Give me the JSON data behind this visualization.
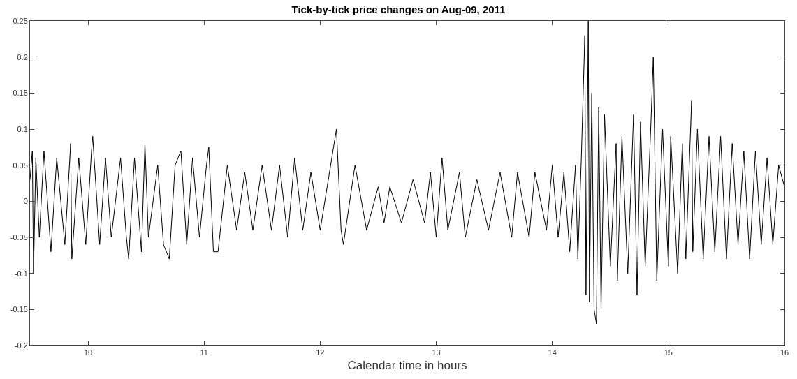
{
  "chart_data": {
    "type": "line",
    "title": "Tick-by-tick price changes on Aug-09, 2011",
    "xlabel": "Calendar time in hours",
    "xlim": [
      9.5,
      16
    ],
    "xticks": [
      10,
      11,
      12,
      13,
      14,
      15,
      16
    ],
    "ylim": [
      -0.2,
      0.25
    ],
    "yticks": [
      -0.2,
      -0.15,
      -0.1,
      -0.05,
      0,
      0.05,
      0.1,
      0.15,
      0.2,
      0.25
    ],
    "marker": "none",
    "line_style": "solid",
    "series": [
      {
        "color": "#000000",
        "x": [
          9.5,
          9.52,
          9.53,
          9.55,
          9.58,
          9.62,
          9.68,
          9.73,
          9.8,
          9.85,
          9.86,
          9.92,
          9.98,
          10.03,
          10.04,
          10.1,
          10.15,
          10.2,
          10.28,
          10.33,
          10.35,
          10.4,
          10.46,
          10.49,
          10.52,
          10.6,
          10.65,
          10.7,
          10.75,
          10.8,
          10.85,
          10.9,
          10.96,
          11.02,
          11.04,
          11.08,
          11.12,
          11.2,
          11.28,
          11.35,
          11.42,
          11.5,
          11.58,
          11.65,
          11.72,
          11.78,
          11.85,
          11.92,
          12.0,
          12.08,
          12.14,
          12.18,
          12.2,
          12.3,
          12.4,
          12.5,
          12.55,
          12.6,
          12.7,
          12.8,
          12.9,
          12.95,
          13.0,
          13.05,
          13.1,
          13.2,
          13.25,
          13.35,
          13.45,
          13.55,
          13.65,
          13.7,
          13.8,
          13.85,
          13.95,
          14.0,
          14.05,
          14.1,
          14.15,
          14.2,
          14.22,
          14.25,
          14.28,
          14.29,
          14.3,
          14.31,
          14.32,
          14.34,
          14.36,
          14.38,
          14.4,
          14.42,
          14.45,
          14.5,
          14.55,
          14.56,
          14.6,
          14.65,
          14.7,
          14.73,
          14.76,
          14.8,
          14.85,
          14.87,
          14.9,
          14.95,
          15.0,
          15.02,
          15.08,
          15.12,
          15.15,
          15.2,
          15.21,
          15.25,
          15.3,
          15.35,
          15.4,
          15.45,
          15.5,
          15.55,
          15.6,
          15.65,
          15.7,
          15.75,
          15.8,
          15.85,
          15.9,
          15.95,
          16.0
        ],
        "values": [
          0.03,
          0.07,
          -0.1,
          0.06,
          -0.05,
          0.07,
          -0.07,
          0.06,
          -0.06,
          0.08,
          -0.08,
          0.06,
          -0.06,
          0.07,
          0.09,
          -0.06,
          0.06,
          -0.05,
          0.06,
          -0.05,
          -0.08,
          0.06,
          -0.07,
          0.08,
          -0.05,
          0.05,
          -0.06,
          -0.08,
          0.05,
          0.07,
          -0.06,
          0.06,
          -0.05,
          0.05,
          0.075,
          -0.07,
          -0.07,
          0.05,
          -0.04,
          0.04,
          -0.04,
          0.05,
          -0.04,
          0.05,
          -0.05,
          0.06,
          -0.04,
          0.04,
          -0.04,
          0.04,
          0.1,
          -0.04,
          -0.06,
          0.05,
          -0.04,
          0.02,
          -0.03,
          0.02,
          -0.03,
          0.03,
          -0.03,
          0.04,
          -0.05,
          0.06,
          -0.04,
          0.04,
          -0.05,
          0.03,
          -0.04,
          0.04,
          -0.05,
          0.04,
          -0.05,
          0.04,
          -0.04,
          0.05,
          -0.05,
          0.04,
          -0.07,
          0.05,
          -0.08,
          0.06,
          0.23,
          -0.13,
          0.06,
          0.25,
          -0.14,
          0.15,
          -0.15,
          -0.17,
          0.13,
          -0.15,
          0.12,
          -0.09,
          0.08,
          -0.11,
          0.09,
          -0.1,
          0.12,
          -0.13,
          0.11,
          -0.09,
          0.11,
          0.2,
          -0.11,
          0.1,
          -0.09,
          0.09,
          -0.1,
          0.08,
          -0.08,
          0.14,
          -0.07,
          0.1,
          -0.08,
          0.09,
          -0.07,
          0.09,
          -0.08,
          0.08,
          -0.06,
          0.07,
          -0.08,
          0.07,
          -0.06,
          0.06,
          -0.06,
          0.05,
          0.02
        ]
      }
    ]
  }
}
